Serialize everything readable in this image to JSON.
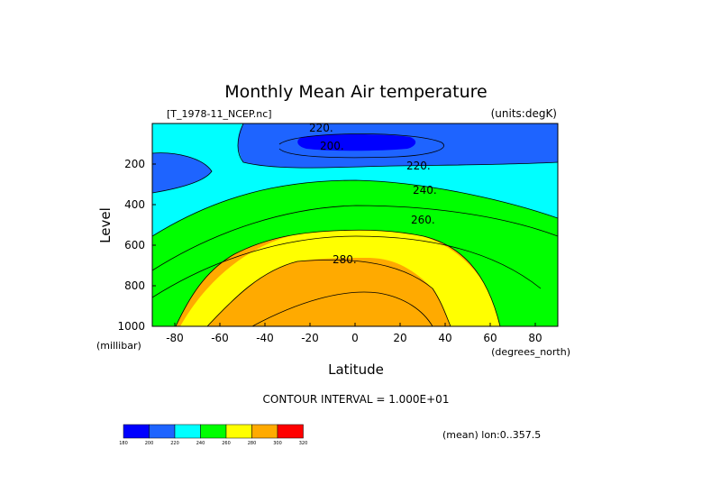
{
  "chart_data": {
    "type": "contour",
    "title": "Monthly Mean Air temperature",
    "file_label": "[T_1978-11_NCEP.nc]",
    "units_label": "(units:degK)",
    "xlabel": "Latitude",
    "ylabel": "Level",
    "x_units": "(degrees_north)",
    "y_units": "(millibar)",
    "xlim": [
      -90,
      90
    ],
    "ylim": [
      0,
      1000
    ],
    "y_reversed": true,
    "x_ticks": [
      "-80",
      "-60",
      "-40",
      "-20",
      "0",
      "20",
      "40",
      "60",
      "80"
    ],
    "y_ticks": [
      "200",
      "400",
      "600",
      "800",
      "1000"
    ],
    "contour_labels": [
      "220.",
      "200.",
      "220.",
      "240.",
      "260.",
      "280."
    ],
    "contour_interval_text": "CONTOUR INTERVAL = 1.000E+01",
    "mean_text": "(mean) lon:0..357.5",
    "colorbar": {
      "ticks": [
        "180",
        "200",
        "220",
        "240",
        "260",
        "280",
        "300",
        "320"
      ],
      "colors": [
        "#0000ff",
        "#1e64ff",
        "#00ffff",
        "#00ff00",
        "#ffff00",
        "#ffaa00",
        "#ff0000"
      ]
    },
    "fill_colors": {
      "lt200": "#0000ff",
      "b200_220": "#1e64ff",
      "b220_240": "#00ffff",
      "b240_260": "#00ff00",
      "b260_280": "#ffff00",
      "b280_300": "#ffaa00"
    }
  }
}
